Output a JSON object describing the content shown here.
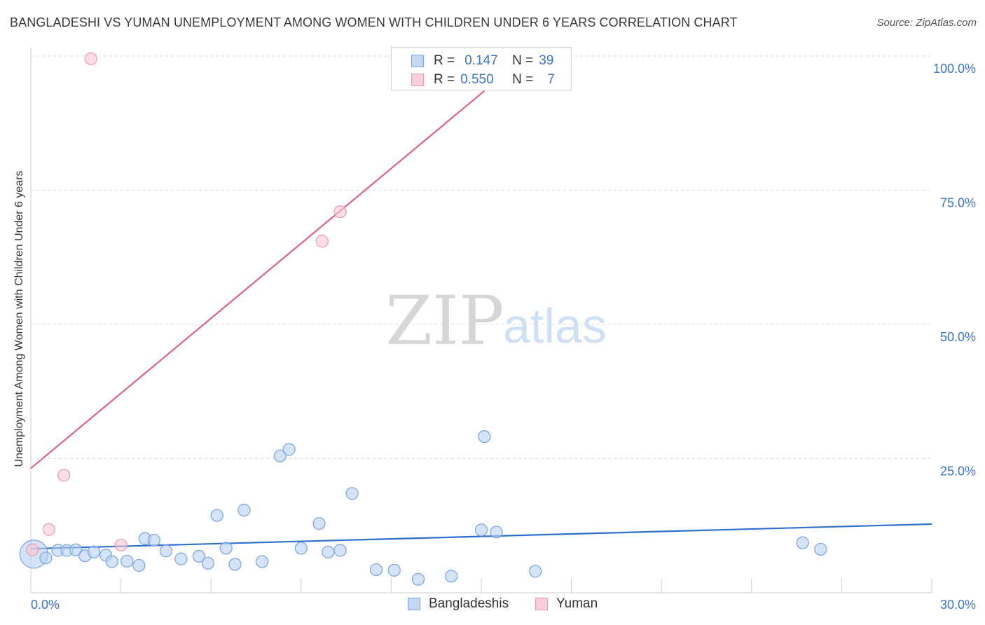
{
  "title": "BANGLADESHI VS YUMAN UNEMPLOYMENT AMONG WOMEN WITH CHILDREN UNDER 6 YEARS CORRELATION CHART",
  "source": "Source: ZipAtlas.com",
  "watermark": {
    "zip": "ZIP",
    "atlas": "atlas"
  },
  "legend_top": [
    {
      "r_key": "R =",
      "r_value": "0.147",
      "n_key": "N =",
      "n_value": "39"
    },
    {
      "r_key": "R =",
      "r_value": "0.550",
      "n_key": "N =",
      "n_value": "7"
    }
  ],
  "colors": {
    "blue_fill": "#b8d0f2",
    "blue_stroke": "#7aa3db",
    "blue_line": "#2f6fce",
    "pink_fill": "#f7c6d4",
    "pink_stroke": "#e89ab0",
    "pink_line": "#e0628b",
    "tick_label": "#3b74c9",
    "grid": "#dddddd"
  },
  "chart_data": {
    "type": "scatter",
    "xlabel": "",
    "ylabel": "Unemployment Among Women with Children Under 6 years",
    "xlim": [
      0,
      30
    ],
    "ylim": [
      0,
      100
    ],
    "x_tick_labels": [
      "0.0%",
      "30.0%"
    ],
    "y_tick_labels": [
      "25.0%",
      "50.0%",
      "75.0%",
      "100.0%"
    ],
    "y_tick_values": [
      25,
      50,
      75,
      100
    ],
    "grid": true,
    "legend": "top-center and bottom",
    "series": [
      {
        "name": "Bangladeshis",
        "color": "blue",
        "points": [
          {
            "x": 0.1,
            "y": 7.2,
            "big": true
          },
          {
            "x": 0.5,
            "y": 6.5
          },
          {
            "x": 0.9,
            "y": 7.9
          },
          {
            "x": 1.2,
            "y": 7.9
          },
          {
            "x": 1.5,
            "y": 8.0
          },
          {
            "x": 1.8,
            "y": 6.9
          },
          {
            "x": 2.1,
            "y": 7.6
          },
          {
            "x": 2.5,
            "y": 7.0
          },
          {
            "x": 2.7,
            "y": 5.8
          },
          {
            "x": 3.2,
            "y": 5.9
          },
          {
            "x": 3.6,
            "y": 5.1
          },
          {
            "x": 3.8,
            "y": 10.1
          },
          {
            "x": 4.1,
            "y": 9.8
          },
          {
            "x": 4.5,
            "y": 7.8
          },
          {
            "x": 5.0,
            "y": 6.3
          },
          {
            "x": 5.6,
            "y": 6.8
          },
          {
            "x": 5.9,
            "y": 5.5
          },
          {
            "x": 6.2,
            "y": 14.4
          },
          {
            "x": 6.5,
            "y": 8.3
          },
          {
            "x": 6.8,
            "y": 5.3
          },
          {
            "x": 7.1,
            "y": 15.4
          },
          {
            "x": 7.7,
            "y": 5.8
          },
          {
            "x": 8.3,
            "y": 25.5
          },
          {
            "x": 8.6,
            "y": 26.7
          },
          {
            "x": 9.0,
            "y": 8.3
          },
          {
            "x": 9.6,
            "y": 12.9
          },
          {
            "x": 9.9,
            "y": 7.6
          },
          {
            "x": 10.3,
            "y": 7.9
          },
          {
            "x": 10.7,
            "y": 18.5
          },
          {
            "x": 11.5,
            "y": 4.3
          },
          {
            "x": 12.1,
            "y": 4.2
          },
          {
            "x": 12.9,
            "y": 2.5
          },
          {
            "x": 14.0,
            "y": 3.1
          },
          {
            "x": 15.1,
            "y": 29.1
          },
          {
            "x": 15.0,
            "y": 11.7
          },
          {
            "x": 15.5,
            "y": 11.3
          },
          {
            "x": 16.8,
            "y": 4.0
          },
          {
            "x": 25.7,
            "y": 9.3
          },
          {
            "x": 26.3,
            "y": 8.1
          }
        ]
      },
      {
        "name": "Yuman",
        "color": "pink",
        "points": [
          {
            "x": 0.05,
            "y": 8.0
          },
          {
            "x": 0.6,
            "y": 11.8
          },
          {
            "x": 1.1,
            "y": 21.9
          },
          {
            "x": 2.0,
            "y": 99.5
          },
          {
            "x": 3.0,
            "y": 8.9
          },
          {
            "x": 9.7,
            "y": 65.5
          },
          {
            "x": 10.3,
            "y": 71.0
          }
        ]
      }
    ],
    "trendlines": [
      {
        "series": "Bangladeshis",
        "x": [
          0,
          30
        ],
        "y": [
          8.2,
          12.8
        ]
      },
      {
        "series": "Yuman",
        "x": [
          0,
          15.1
        ],
        "y": [
          23.2,
          93.5
        ]
      }
    ]
  },
  "legend_bottom": [
    {
      "label": "Bangladeshis",
      "color": "blue"
    },
    {
      "label": "Yuman",
      "color": "pink"
    }
  ]
}
